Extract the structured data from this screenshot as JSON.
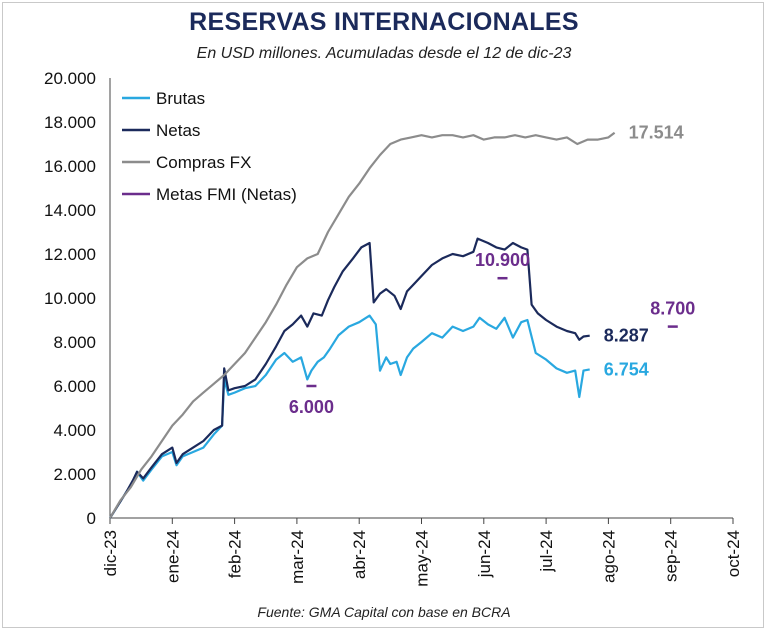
{
  "title": "RESERVAS INTERNACIONALES",
  "subtitle": "En USD millones. Acumuladas desde el 12 de dic-23",
  "source": "Fuente: GMA Capital con base en BCRA",
  "chart_data": {
    "type": "line",
    "title": "RESERVAS INTERNACIONALES",
    "subtitle": "En USD millones. Acumuladas desde el 12 de dic-23",
    "xlabel": "",
    "ylabel": "",
    "ylim": [
      0,
      20000
    ],
    "y_ticks": [
      "0",
      "2.000",
      "4.000",
      "6.000",
      "8.000",
      "10.000",
      "12.000",
      "14.000",
      "16.000",
      "18.000",
      "20.000"
    ],
    "x_ticks": [
      "dic-23",
      "ene-24",
      "feb-24",
      "mar-24",
      "abr-24",
      "may-24",
      "jun-24",
      "jul-24",
      "ago-24",
      "sep-24",
      "oct-24"
    ],
    "grid": false,
    "legend_position": "top-left",
    "series": [
      {
        "name": "Brutas",
        "color": "#29a8e0",
        "points": [
          [
            0,
            0
          ],
          [
            4,
            600
          ],
          [
            8,
            1200
          ],
          [
            11,
            1600
          ],
          [
            13,
            2100
          ],
          [
            16,
            1700
          ],
          [
            20,
            2200
          ],
          [
            25,
            2800
          ],
          [
            30,
            3000
          ],
          [
            32,
            2400
          ],
          [
            35,
            2800
          ],
          [
            40,
            3000
          ],
          [
            45,
            3200
          ],
          [
            50,
            3800
          ],
          [
            54,
            4200
          ],
          [
            55,
            6300
          ],
          [
            57,
            5600
          ],
          [
            60,
            5700
          ],
          [
            65,
            5900
          ],
          [
            70,
            6000
          ],
          [
            75,
            6500
          ],
          [
            80,
            7200
          ],
          [
            84,
            7500
          ],
          [
            88,
            7100
          ],
          [
            92,
            7300
          ],
          [
            95,
            6300
          ],
          [
            97,
            6700
          ],
          [
            100,
            7100
          ],
          [
            103,
            7300
          ],
          [
            106,
            7700
          ],
          [
            110,
            8300
          ],
          [
            115,
            8700
          ],
          [
            120,
            8900
          ],
          [
            125,
            9200
          ],
          [
            128,
            8800
          ],
          [
            130,
            6700
          ],
          [
            133,
            7300
          ],
          [
            135,
            7000
          ],
          [
            138,
            7100
          ],
          [
            140,
            6500
          ],
          [
            143,
            7300
          ],
          [
            146,
            7700
          ],
          [
            150,
            8000
          ],
          [
            155,
            8400
          ],
          [
            160,
            8200
          ],
          [
            165,
            8700
          ],
          [
            170,
            8500
          ],
          [
            175,
            8700
          ],
          [
            178,
            9100
          ],
          [
            182,
            8800
          ],
          [
            186,
            8600
          ],
          [
            190,
            9100
          ],
          [
            194,
            8200
          ],
          [
            198,
            8900
          ],
          [
            201,
            9000
          ],
          [
            205,
            7500
          ],
          [
            210,
            7200
          ],
          [
            215,
            6800
          ],
          [
            220,
            6600
          ],
          [
            224,
            6700
          ],
          [
            226,
            5500
          ],
          [
            228,
            6700
          ],
          [
            231,
            6754
          ]
        ],
        "end_label": "6.754"
      },
      {
        "name": "Netas",
        "color": "#1b2a5b",
        "points": [
          [
            0,
            0
          ],
          [
            4,
            600
          ],
          [
            8,
            1200
          ],
          [
            11,
            1700
          ],
          [
            13,
            2100
          ],
          [
            16,
            1800
          ],
          [
            20,
            2300
          ],
          [
            25,
            2900
          ],
          [
            30,
            3200
          ],
          [
            32,
            2500
          ],
          [
            35,
            2900
          ],
          [
            40,
            3200
          ],
          [
            45,
            3500
          ],
          [
            50,
            4000
          ],
          [
            54,
            4200
          ],
          [
            55,
            6800
          ],
          [
            57,
            5800
          ],
          [
            60,
            5900
          ],
          [
            65,
            6000
          ],
          [
            70,
            6300
          ],
          [
            75,
            7000
          ],
          [
            80,
            7800
          ],
          [
            84,
            8500
          ],
          [
            88,
            8800
          ],
          [
            92,
            9200
          ],
          [
            95,
            8700
          ],
          [
            98,
            9300
          ],
          [
            102,
            9200
          ],
          [
            105,
            9900
          ],
          [
            108,
            10500
          ],
          [
            112,
            11200
          ],
          [
            117,
            11800
          ],
          [
            121,
            12300
          ],
          [
            125,
            12500
          ],
          [
            127,
            9800
          ],
          [
            130,
            10200
          ],
          [
            133,
            10400
          ],
          [
            137,
            10100
          ],
          [
            140,
            9500
          ],
          [
            143,
            10300
          ],
          [
            147,
            10700
          ],
          [
            150,
            11000
          ],
          [
            155,
            11500
          ],
          [
            160,
            11800
          ],
          [
            165,
            12000
          ],
          [
            170,
            11900
          ],
          [
            175,
            12100
          ],
          [
            177,
            12700
          ],
          [
            182,
            12500
          ],
          [
            186,
            12300
          ],
          [
            190,
            12200
          ],
          [
            194,
            12500
          ],
          [
            198,
            12300
          ],
          [
            201,
            12200
          ],
          [
            203,
            9700
          ],
          [
            206,
            9300
          ],
          [
            210,
            9000
          ],
          [
            215,
            8700
          ],
          [
            220,
            8500
          ],
          [
            224,
            8400
          ],
          [
            226,
            8100
          ],
          [
            228,
            8250
          ],
          [
            231,
            8287
          ]
        ],
        "end_label": "8.287"
      },
      {
        "name": "Compras FX",
        "color": "#8c8c8c",
        "points": [
          [
            0,
            0
          ],
          [
            5,
            800
          ],
          [
            10,
            1400
          ],
          [
            15,
            2200
          ],
          [
            20,
            2800
          ],
          [
            25,
            3500
          ],
          [
            30,
            4200
          ],
          [
            35,
            4700
          ],
          [
            40,
            5300
          ],
          [
            45,
            5700
          ],
          [
            50,
            6100
          ],
          [
            55,
            6500
          ],
          [
            60,
            7000
          ],
          [
            65,
            7500
          ],
          [
            70,
            8200
          ],
          [
            75,
            8900
          ],
          [
            80,
            9700
          ],
          [
            85,
            10600
          ],
          [
            90,
            11400
          ],
          [
            95,
            11800
          ],
          [
            100,
            12000
          ],
          [
            105,
            13000
          ],
          [
            110,
            13800
          ],
          [
            115,
            14600
          ],
          [
            120,
            15200
          ],
          [
            125,
            15900
          ],
          [
            130,
            16500
          ],
          [
            135,
            17000
          ],
          [
            140,
            17200
          ],
          [
            145,
            17300
          ],
          [
            150,
            17400
          ],
          [
            155,
            17300
          ],
          [
            160,
            17400
          ],
          [
            165,
            17400
          ],
          [
            170,
            17300
          ],
          [
            175,
            17400
          ],
          [
            180,
            17200
          ],
          [
            185,
            17300
          ],
          [
            190,
            17300
          ],
          [
            195,
            17400
          ],
          [
            200,
            17300
          ],
          [
            205,
            17400
          ],
          [
            210,
            17300
          ],
          [
            215,
            17200
          ],
          [
            220,
            17300
          ],
          [
            225,
            17000
          ],
          [
            230,
            17200
          ],
          [
            235,
            17200
          ],
          [
            240,
            17300
          ],
          [
            243,
            17514
          ]
        ],
        "end_label": "17.514"
      },
      {
        "name": "Metas FMI (Netas)",
        "color": "#6b2d8c",
        "markers": [
          [
            97,
            6000,
            "6.000"
          ],
          [
            189,
            10900,
            "10.900"
          ],
          [
            271,
            8700,
            "8.700"
          ]
        ]
      }
    ]
  }
}
